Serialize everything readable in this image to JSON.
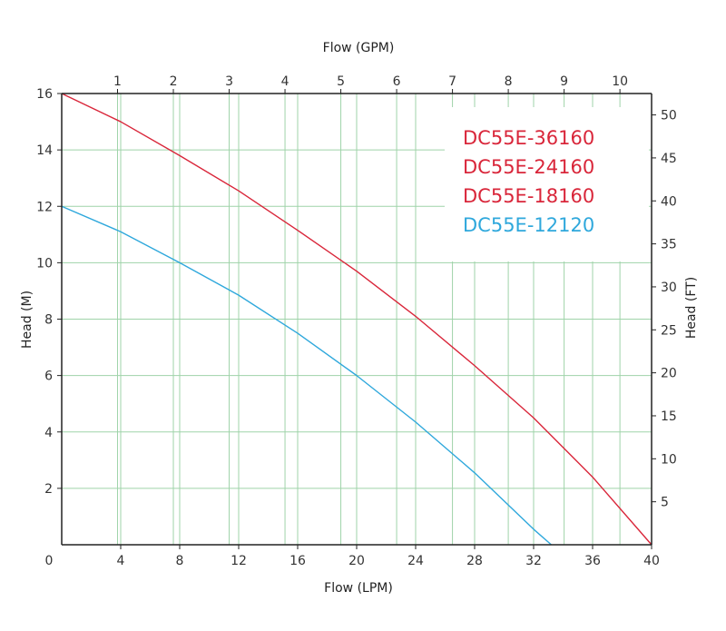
{
  "chart_data": {
    "type": "line",
    "xlabel": "Flow (LPM)",
    "x2label": "Flow (GPM)",
    "ylabel": "Head (M)",
    "y2label": "Head (FT)",
    "xlim": [
      0,
      40
    ],
    "ylim": [
      0,
      16
    ],
    "x2lim": [
      0,
      10.567
    ],
    "y2lim": [
      0,
      52.49
    ],
    "x_ticks": [
      4,
      8,
      12,
      16,
      20,
      24,
      28,
      32,
      36,
      40
    ],
    "x_origin_label": "0",
    "y_ticks": [
      2,
      4,
      6,
      8,
      10,
      12,
      14,
      16
    ],
    "x2_ticks": [
      1,
      2,
      3,
      4,
      5,
      6,
      7,
      8,
      9,
      10
    ],
    "y2_ticks": [
      5,
      10,
      15,
      20,
      25,
      30,
      35,
      40,
      45,
      50
    ],
    "grid": true,
    "legend_placement": "top-right",
    "legend_entries": [
      {
        "label": "DC55E-36160",
        "color": "#d9263a"
      },
      {
        "label": "DC55E-24160",
        "color": "#d9263a"
      },
      {
        "label": "DC55E-18160",
        "color": "#d9263a"
      },
      {
        "label": "DC55E-12120",
        "color": "#2fa8dc"
      }
    ],
    "series": [
      {
        "color": "#d9263a",
        "x": [
          0,
          4,
          8,
          12,
          16,
          20,
          24,
          28,
          32,
          36,
          40
        ],
        "y": [
          16,
          15.0,
          13.8,
          12.55,
          11.15,
          9.7,
          8.1,
          6.35,
          4.5,
          2.4,
          0
        ]
      },
      {
        "color": "#2fa8dc",
        "x": [
          0,
          4,
          8,
          12,
          16,
          20,
          24,
          28,
          32,
          33.2
        ],
        "y": [
          12,
          11.1,
          10.0,
          8.85,
          7.5,
          6.0,
          4.35,
          2.55,
          0.55,
          0
        ]
      }
    ]
  }
}
